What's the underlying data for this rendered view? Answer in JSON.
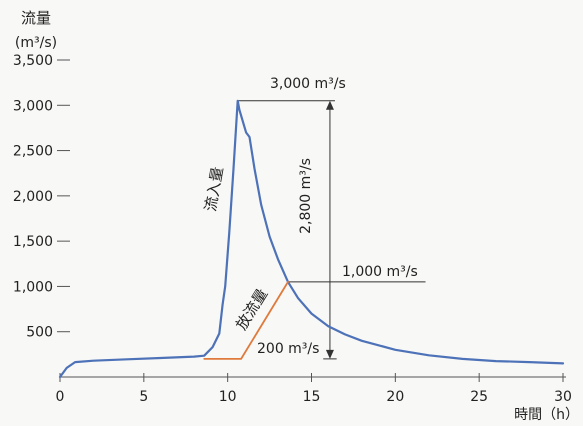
{
  "chart_data": {
    "type": "line",
    "ylabel": "流量",
    "ylabel_unit": "(m³/s)",
    "xlabel": "時間（h）",
    "xlim": [
      0,
      30
    ],
    "ylim": [
      0,
      3500
    ],
    "grid": false,
    "x_ticks": [
      0,
      5,
      10,
      15,
      20,
      25,
      30
    ],
    "x_tick_labels": [
      "0",
      "5",
      "10",
      "15",
      "20",
      "25",
      "30"
    ],
    "y_ticks": [
      500,
      1000,
      1500,
      2000,
      2500,
      3000,
      3500
    ],
    "y_tick_labels": [
      "500",
      "1,000",
      "1,500",
      "2,000",
      "2,500",
      "3,000",
      "3,500"
    ],
    "series": [
      {
        "name": "流入量",
        "color": "#4d72b8",
        "x": [
          0,
          0.4,
          0.9,
          2,
          4,
          6,
          8,
          8.6,
          9.1,
          9.5,
          9.7,
          9.85,
          10.1,
          10.35,
          10.6,
          10.7,
          11.1,
          11.3,
          11.6,
          12,
          12.5,
          13,
          13.6,
          14.2,
          15,
          16,
          17,
          18,
          19,
          20,
          22,
          24,
          26,
          28,
          30
        ],
        "y": [
          0,
          100,
          165,
          180,
          195,
          210,
          225,
          235,
          330,
          480,
          800,
          1000,
          1600,
          2300,
          3050,
          2950,
          2700,
          2650,
          2300,
          1900,
          1550,
          1300,
          1050,
          870,
          700,
          560,
          470,
          400,
          350,
          300,
          240,
          200,
          175,
          165,
          150
        ]
      },
      {
        "name": "放流量",
        "color": "#e07a3c",
        "x": [
          8.6,
          10.8,
          13.6
        ],
        "y": [
          200,
          200,
          1050
        ]
      }
    ],
    "annotations": {
      "peak": {
        "text": "3,000 m³/s",
        "y": 3050,
        "x_range": [
          10.6,
          16.4
        ]
      },
      "difference": {
        "text": "2,800 m³/s",
        "x": 16.1,
        "y_range": [
          200,
          3050
        ]
      },
      "outflow_peak": {
        "text": "1,000 m³/s",
        "y": 1050,
        "x_range": [
          13.6,
          21.8
        ]
      },
      "base": {
        "text": "200 m³/s",
        "y": 200,
        "x_range": [
          15.7,
          16.5
        ]
      }
    }
  },
  "colors": {
    "background": "#f8f8f6",
    "text": "#222222",
    "axis": "#555555",
    "annotation": "#333333"
  }
}
